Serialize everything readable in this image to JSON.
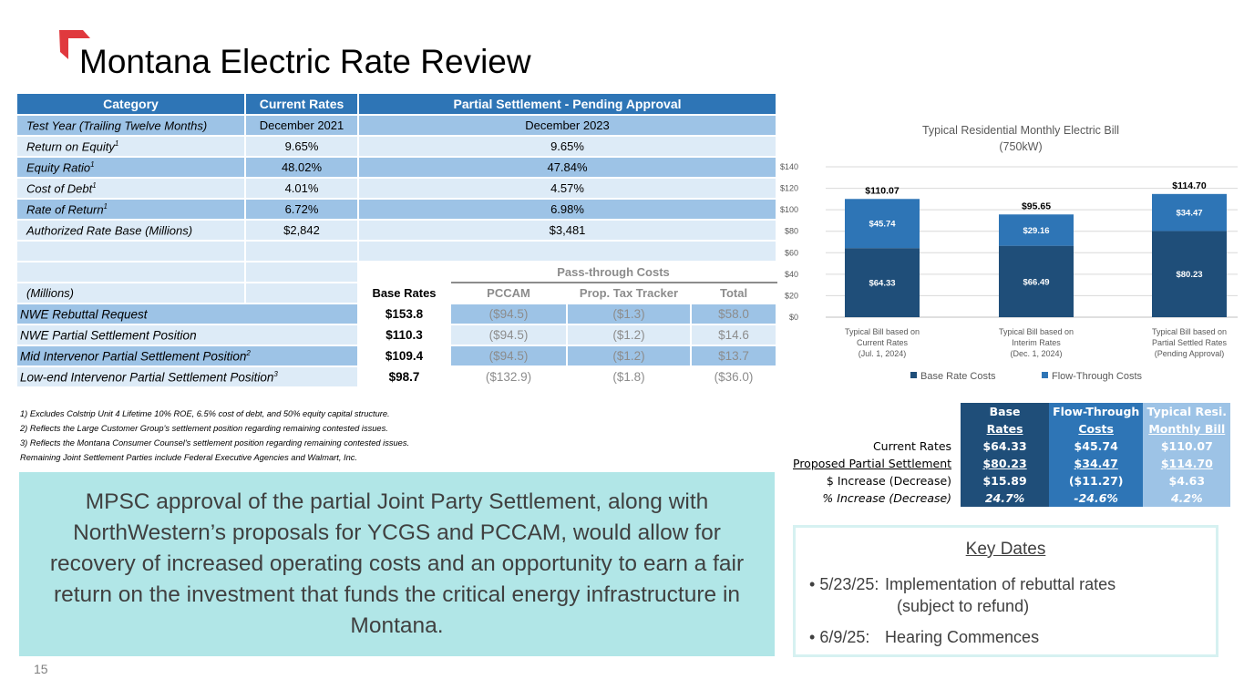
{
  "title": "Montana Electric Rate Review",
  "rate_table": {
    "headers": {
      "category": "Category",
      "current": "Current Rates",
      "settlement": "Partial Settlement - Pending Approval"
    },
    "rows": [
      {
        "label": "Test Year (Trailing Twelve Months)",
        "sup": "",
        "current": "December 2021",
        "settlement": "December 2023"
      },
      {
        "label": "Return on Equity",
        "sup": "1",
        "current": "9.65%",
        "settlement": "9.65%"
      },
      {
        "label": "Equity Ratio",
        "sup": "1",
        "current": "48.02%",
        "settlement": "47.84%"
      },
      {
        "label": "Cost of Debt",
        "sup": "1",
        "current": "4.01%",
        "settlement": "4.57%"
      },
      {
        "label": "Rate of Return",
        "sup": "1",
        "current": "6.72%",
        "settlement": "6.98%"
      },
      {
        "label": "Authorized Rate Base (Millions)",
        "sup": "",
        "current": "$2,842",
        "settlement": "$3,481"
      }
    ],
    "pass_through_label": "Pass-through Costs",
    "millions_label": "(Millions)",
    "cols": {
      "base": "Base Rates",
      "pccam": "PCCAM",
      "prop_tax": "Prop. Tax Tracker",
      "total": "Total"
    },
    "positions": [
      {
        "label": "NWE Rebuttal Request",
        "sup": "",
        "base": "$153.8",
        "pccam": "($94.5)",
        "prop_tax": "($1.3)",
        "total": "$58.0"
      },
      {
        "label": "NWE Partial Settlement Position",
        "sup": "",
        "base": "$110.3",
        "pccam": "($94.5)",
        "prop_tax": "($1.2)",
        "total": "$14.6"
      },
      {
        "label": "Mid Intervenor Partial Settlement Position",
        "sup": "2",
        "base": "$109.4",
        "pccam": "($94.5)",
        "prop_tax": "($1.2)",
        "total": "$13.7"
      },
      {
        "label": "Low-end Intervenor Partial Settlement Position",
        "sup": "3",
        "base": "$98.7",
        "pccam": "($132.9)",
        "prop_tax": "($1.8)",
        "total": "($36.0)"
      }
    ]
  },
  "footnotes": [
    "1) Excludes Colstrip Unit 4 Lifetime 10% ROE, 6.5% cost of debt, and 50% equity capital structure.",
    "2) Reflects the Large Customer Group's settlement position regarding remaining contested issues.",
    "3) Reflects the Montana Consumer Counsel's settlement position regarding remaining contested issues.",
    "Remaining Joint Settlement Parties include Federal Executive Agencies and Walmart, Inc."
  ],
  "callout": "MPSC approval of the partial Joint Party Settlement, along with NorthWestern’s proposals for YCGS and PCCAM, would allow for recovery of increased operating costs and an opportunity to earn a fair return on the investment that funds the critical energy infrastructure in Montana.",
  "page_number": "15",
  "chart_data": {
    "type": "bar",
    "stacked": true,
    "title": "Typical Residential Monthly Electric Bill",
    "subtitle": "(750kW)",
    "categories": [
      [
        "Typical Bill based on",
        "Current Rates",
        "(Jul. 1, 2024)"
      ],
      [
        "Typical Bill based on",
        "Interim Rates",
        "(Dec. 1, 2024)"
      ],
      [
        "Typical Bill based on",
        "Partial Settled Rates",
        "(Pending Approval)"
      ]
    ],
    "series": [
      {
        "name": "Base Rate Costs",
        "color": "#1f4e79",
        "values": [
          64.33,
          66.49,
          80.23
        ],
        "labels": [
          "$64.33",
          "$66.49",
          "$80.23"
        ]
      },
      {
        "name": "Flow-Through Costs",
        "color": "#2e75b6",
        "values": [
          45.74,
          29.16,
          34.47
        ],
        "labels": [
          "$45.74",
          "$29.16",
          "$34.47"
        ]
      }
    ],
    "totals": [
      "$110.07",
      "$95.65",
      "$114.70"
    ],
    "y_ticks": [
      "$0",
      "$20",
      "$40",
      "$60",
      "$80",
      "$100",
      "$120",
      "$140"
    ],
    "ylim": [
      0,
      140
    ],
    "grid": true,
    "legend": "bottom"
  },
  "bill_table": {
    "headers": [
      [
        "Base",
        "Rates"
      ],
      [
        "Flow-Through",
        "Costs"
      ],
      [
        "Typical Resi.",
        "Monthly Bill"
      ]
    ],
    "rows": [
      {
        "label": "Current Rates",
        "v": [
          "$64.33",
          "$45.74",
          "$110.07"
        ]
      },
      {
        "label": "Proposed Partial Settlement",
        "v": [
          "$80.23",
          "$34.47",
          "$114.70"
        ]
      },
      {
        "label": "$ Increase (Decrease)",
        "v": [
          "$15.89",
          "($11.27)",
          "$4.63"
        ]
      },
      {
        "label": "% Increase (Decrease)",
        "v": [
          "24.7%",
          "-24.6%",
          "4.2%"
        ]
      }
    ]
  },
  "key_dates": {
    "title": "Key Dates",
    "items": [
      {
        "date": "5/23/25:",
        "text": "Implementation of rebuttal rates",
        "text2": "(subject to refund)"
      },
      {
        "date": "6/9/25:",
        "text": "Hearing Commences",
        "text2": ""
      }
    ]
  }
}
